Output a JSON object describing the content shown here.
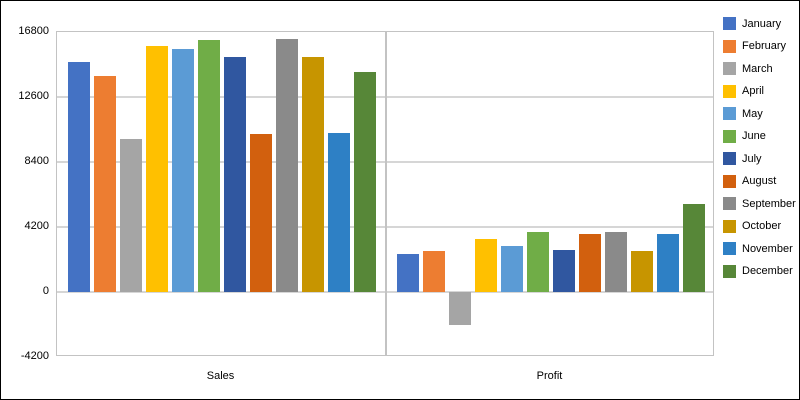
{
  "chart_data": {
    "type": "bar",
    "title": "",
    "xlabel": "",
    "ylabel": "",
    "categories": [
      "Sales",
      "Profit"
    ],
    "series": [
      {
        "name": "January",
        "color": "#4472C4",
        "values": [
          14850,
          2450
        ]
      },
      {
        "name": "February",
        "color": "#ED7D31",
        "values": [
          13950,
          2670
        ]
      },
      {
        "name": "March",
        "color": "#A5A5A5",
        "values": [
          9900,
          -2100
        ]
      },
      {
        "name": "April",
        "color": "#FFC000",
        "values": [
          15900,
          3400
        ]
      },
      {
        "name": "May",
        "color": "#5B9BD5",
        "values": [
          15700,
          2970
        ]
      },
      {
        "name": "June",
        "color": "#70AD47",
        "values": [
          16300,
          3900
        ]
      },
      {
        "name": "July",
        "color": "#3057A0",
        "values": [
          15200,
          2690
        ]
      },
      {
        "name": "August",
        "color": "#D2600E",
        "values": [
          10200,
          3720
        ]
      },
      {
        "name": "September",
        "color": "#8A8A8A",
        "values": [
          16350,
          3890
        ]
      },
      {
        "name": "October",
        "color": "#C79500",
        "values": [
          15200,
          2670
        ]
      },
      {
        "name": "November",
        "color": "#2E80C5",
        "values": [
          10250,
          3740
        ]
      },
      {
        "name": "December",
        "color": "#578738",
        "values": [
          14200,
          5700
        ]
      }
    ],
    "y_ticks": [
      16800,
      12600,
      8400,
      4200,
      0,
      -4200
    ],
    "ylim": [
      -4200,
      16800
    ],
    "grid": true,
    "legend_position": "right"
  },
  "colors": {
    "background": "#FFFFFF",
    "outer_border": "#000000",
    "plot_border": "#C3C3C3",
    "gridline": "#D6D6D6",
    "text": "#000000"
  }
}
